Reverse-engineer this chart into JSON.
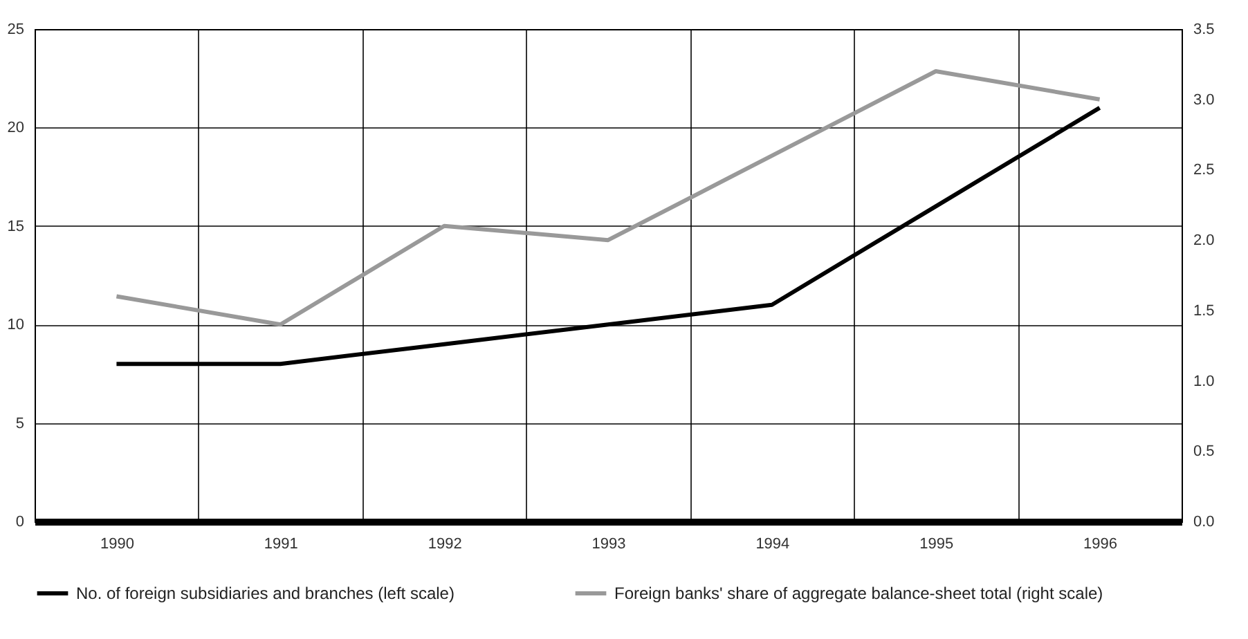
{
  "chart_data": {
    "type": "line",
    "categories": [
      "1990",
      "1991",
      "1992",
      "1993",
      "1994",
      "1995",
      "1996"
    ],
    "series": [
      {
        "name": "No. of foreign subsidiaries and branches (left scale)",
        "color": "#000000",
        "values": [
          8,
          8,
          9,
          10,
          11,
          16,
          21
        ]
      },
      {
        "name": "Foreign banks' share of aggregate balance-sheet total (right scale)",
        "color": "#999999",
        "axis": "y2",
        "values": [
          1.6,
          1.4,
          2.1,
          2.0,
          2.6,
          3.2,
          3.0
        ]
      }
    ],
    "ylim": [
      0,
      25
    ],
    "yticks": [
      0,
      5,
      10,
      15,
      20,
      25
    ],
    "y2lim": [
      0,
      3.5
    ],
    "y2ticks": [
      {
        "value": 0,
        "label": "0.0"
      },
      {
        "value": 0.5,
        "label": "0.5"
      },
      {
        "value": 1,
        "label": "1.0"
      },
      {
        "value": 1.5,
        "label": "1.5"
      },
      {
        "value": 2,
        "label": "2.0"
      },
      {
        "value": 2.5,
        "label": "2.5"
      },
      {
        "value": 3,
        "label": "3.0"
      },
      {
        "value": 3.5,
        "label": "3.5"
      }
    ],
    "grid": true,
    "legend": "bottom"
  }
}
